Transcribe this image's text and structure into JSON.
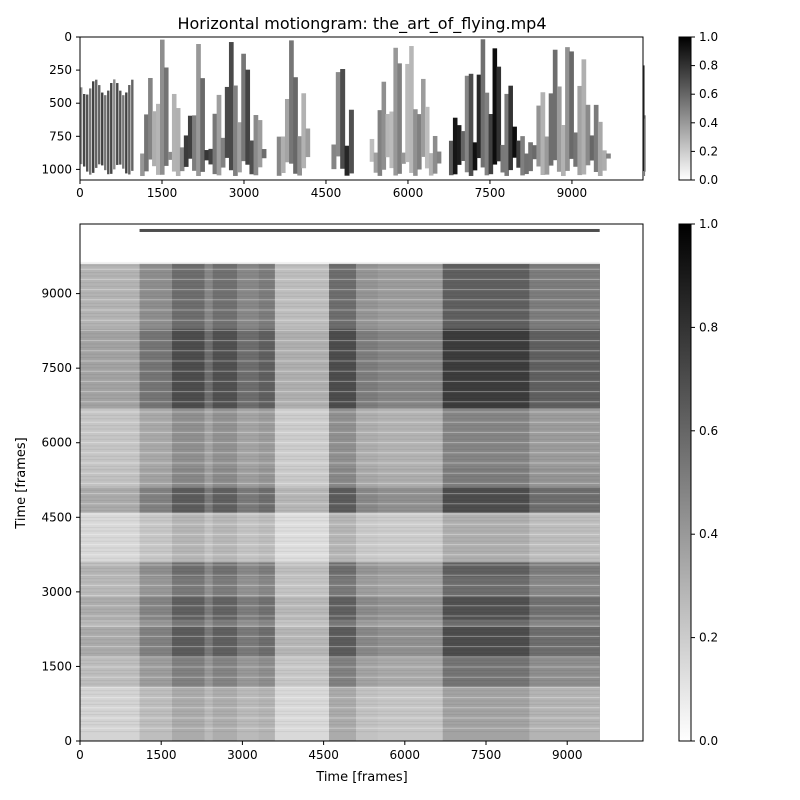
{
  "chart_data": [
    {
      "type": "heatmap",
      "title": "Horizontal motiongram: the_art_of_flying.mp4",
      "xlabel": "",
      "ylabel": "",
      "xlim": [
        0,
        10300
      ],
      "ylim": [
        1080,
        0
      ],
      "xticks": [
        0,
        1500,
        3000,
        4500,
        6000,
        7500,
        9000
      ],
      "yticks": [
        0,
        250,
        500,
        750,
        1000
      ],
      "colormap": "gray_r",
      "colorbar": {
        "range": [
          0,
          1
        ],
        "ticks": [
          "0.0",
          "0.2",
          "0.4",
          "0.6",
          "0.8",
          "1.0"
        ]
      },
      "dark_bands": [
        {
          "x0": 1100,
          "x1": 1900,
          "v": 0.55
        },
        {
          "x0": 1900,
          "x1": 2350,
          "v": 0.8
        },
        {
          "x0": 2350,
          "x1": 3400,
          "v": 0.75
        },
        {
          "x0": 3600,
          "x1": 4200,
          "v": 0.6
        },
        {
          "x0": 4600,
          "x1": 5000,
          "v": 0.85
        },
        {
          "x0": 5300,
          "x1": 6600,
          "v": 0.5
        },
        {
          "x0": 6750,
          "x1": 8200,
          "v": 0.95
        },
        {
          "x0": 8200,
          "x1": 9700,
          "v": 0.6
        },
        {
          "x0": 10300,
          "x1": 10400,
          "v": 1.0
        }
      ]
    },
    {
      "type": "heatmap",
      "title": "",
      "xlabel": "Time [frames]",
      "ylabel": "Time [frames]",
      "xlim": [
        0,
        10400
      ],
      "ylim": [
        0,
        10400
      ],
      "xticks": [
        0,
        1500,
        3000,
        4500,
        6000,
        7500,
        9000
      ],
      "yticks": [
        0,
        1500,
        3000,
        4500,
        6000,
        7500,
        9000
      ],
      "colormap": "gray_r",
      "colorbar": {
        "range": [
          0,
          1
        ],
        "ticks": [
          "0.0",
          "0.2",
          "0.4",
          "0.6",
          "0.8",
          "1.0"
        ]
      },
      "segments": [
        {
          "from": 0,
          "to": 1100,
          "v": 0.2
        },
        {
          "from": 1100,
          "to": 1700,
          "v": 0.45
        },
        {
          "from": 1700,
          "to": 2300,
          "v": 0.75
        },
        {
          "from": 2300,
          "to": 2450,
          "v": 0.5
        },
        {
          "from": 2450,
          "to": 2900,
          "v": 0.72
        },
        {
          "from": 2900,
          "to": 3300,
          "v": 0.5
        },
        {
          "from": 3300,
          "to": 3600,
          "v": 0.6
        },
        {
          "from": 3600,
          "to": 4600,
          "v": 0.15
        },
        {
          "from": 4600,
          "to": 5100,
          "v": 0.75
        },
        {
          "from": 5100,
          "to": 5500,
          "v": 0.4
        },
        {
          "from": 5500,
          "to": 6700,
          "v": 0.35
        },
        {
          "from": 6700,
          "to": 8300,
          "v": 0.9
        },
        {
          "from": 8300,
          "to": 9600,
          "v": 0.6
        },
        {
          "from": 9600,
          "to": 10400,
          "v": 0.0
        }
      ]
    }
  ]
}
